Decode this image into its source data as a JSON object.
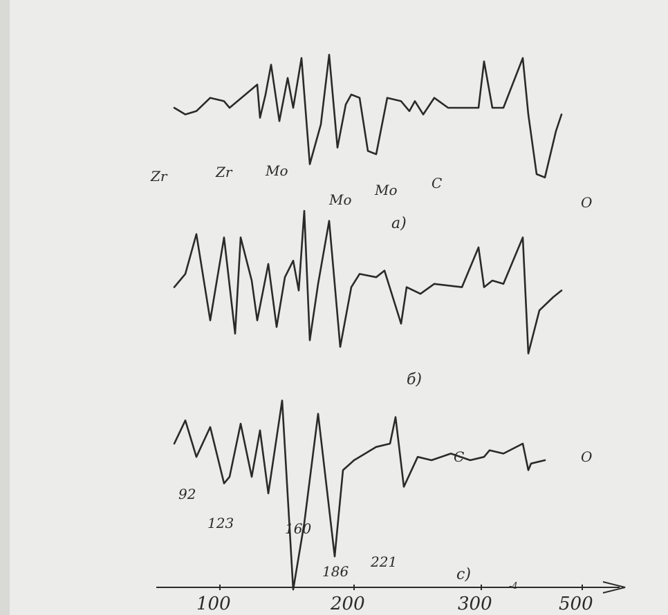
{
  "chart_data": [
    {
      "type": "line",
      "panel_label": "a)",
      "peak_labels": [
        "Zr",
        "Zr",
        "Mo",
        "Mo",
        "Mo",
        "C",
        "O"
      ],
      "series": [
        {
          "x": [
            92,
            100,
            108,
            118,
            128,
            132,
            152,
            154,
            158,
            162,
            168,
            174,
            178,
            184,
            190,
            198,
            204,
            210,
            216,
            220,
            226,
            232,
            238,
            246,
            256,
            262,
            266,
            272,
            280,
            290,
            312,
            316,
            322,
            330,
            344,
            348,
            354,
            360,
            368,
            372
          ],
          "y": [
            0.5,
            0.3,
            0.4,
            0.8,
            0.7,
            0.5,
            1.2,
            0.2,
            0.9,
            1.8,
            0.1,
            1.4,
            0.5,
            2.0,
            -1.2,
            0.0,
            2.1,
            -0.7,
            0.6,
            0.9,
            0.8,
            -0.8,
            -0.9,
            0.8,
            0.7,
            0.4,
            0.7,
            0.3,
            0.8,
            0.5,
            0.5,
            1.9,
            0.5,
            0.5,
            2.0,
            0.3,
            -1.5,
            -1.6,
            -0.2,
            0.3
          ]
        }
      ]
    },
    {
      "type": "line",
      "panel_label": "б)",
      "series": [
        {
          "x": [
            92,
            100,
            108,
            118,
            128,
            136,
            140,
            148,
            152,
            160,
            166,
            172,
            178,
            182,
            186,
            190,
            196,
            204,
            212,
            220,
            226,
            238,
            244,
            256,
            260,
            270,
            280,
            300,
            312,
            316,
            322,
            330,
            344,
            348,
            356,
            366,
            372
          ],
          "y": [
            0.3,
            0.7,
            1.9,
            -0.7,
            1.8,
            -1.1,
            1.8,
            0.5,
            -0.7,
            1.0,
            -0.9,
            0.6,
            1.1,
            0.2,
            2.6,
            -1.3,
            0.4,
            2.3,
            -1.5,
            0.3,
            0.7,
            0.6,
            0.8,
            -0.8,
            0.3,
            0.1,
            0.4,
            0.3,
            1.5,
            0.3,
            0.5,
            0.4,
            1.8,
            -1.7,
            -0.4,
            0.0,
            0.2
          ]
        }
      ]
    },
    {
      "type": "line",
      "panel_label": "c)",
      "peak_labels": [
        "92",
        "123",
        "160",
        "186",
        "221",
        "C",
        "O"
      ],
      "series": [
        {
          "x": [
            92,
            100,
            108,
            118,
            128,
            132,
            140,
            148,
            154,
            160,
            170,
            178,
            186,
            196,
            208,
            214,
            222,
            226,
            238,
            248,
            252,
            258,
            268,
            278,
            292,
            306,
            316,
            320,
            330,
            344,
            348,
            350,
            360
          ],
          "y": [
            1.0,
            1.7,
            0.6,
            1.5,
            -0.2,
            0.0,
            1.6,
            0.0,
            1.4,
            -0.5,
            2.3,
            -3.4,
            -1.4,
            1.9,
            -2.4,
            0.2,
            0.5,
            0.6,
            0.9,
            1.0,
            1.8,
            -0.3,
            0.6,
            0.5,
            0.7,
            0.5,
            0.6,
            0.8,
            0.7,
            1.0,
            0.2,
            0.4,
            0.5
          ]
        }
      ]
    }
  ],
  "axis": {
    "ticks": [
      100,
      200,
      300,
      500
    ],
    "tick_labels": [
      "100",
      "200",
      "300",
      "500"
    ],
    "exponent_label": "-4",
    "xlim": [
      80,
      380
    ]
  },
  "colors": {
    "ink": "#2a2a2a",
    "paper": "#ececea"
  }
}
